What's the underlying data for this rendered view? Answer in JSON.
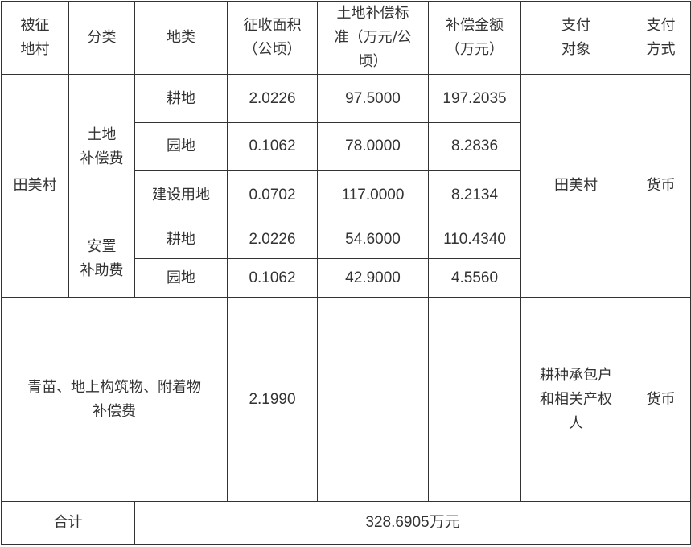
{
  "headers": [
    "被征\n地村",
    "分类",
    "地类",
    "征收面积\n（公顷）",
    "土地补偿标\n准（万元/公\n顷）",
    "补偿金额\n（万元）",
    "支付\n对象",
    "支付\n方式"
  ],
  "village": "田美村",
  "land_comp": {
    "category": "土地\n补偿费",
    "rows": [
      {
        "type": "耕地",
        "area": "2.0226",
        "standard": "97.5000",
        "amount": "197.2035"
      },
      {
        "type": "园地",
        "area": "0.1062",
        "standard": "78.0000",
        "amount": "8.2836"
      },
      {
        "type": "建设用地",
        "area": "0.0702",
        "standard": "117.0000",
        "amount": "8.2134"
      }
    ]
  },
  "resettle": {
    "category": "安置\n补助费",
    "rows": [
      {
        "type": "耕地",
        "area": "2.0226",
        "standard": "54.6000",
        "amount": "110.4340"
      },
      {
        "type": "园地",
        "area": "0.1062",
        "standard": "42.9000",
        "amount": "4.5560"
      }
    ]
  },
  "payee_1": "田美村",
  "method_1": "货币",
  "crops": {
    "label": "青苗、地上构筑物、附着物\n补偿费",
    "area": "2.1990",
    "standard": "",
    "amount": "",
    "payee": "耕种承包户\n和相关产权\n人",
    "method": "货币"
  },
  "total": {
    "label": "合计",
    "value": "328.6905万元"
  }
}
